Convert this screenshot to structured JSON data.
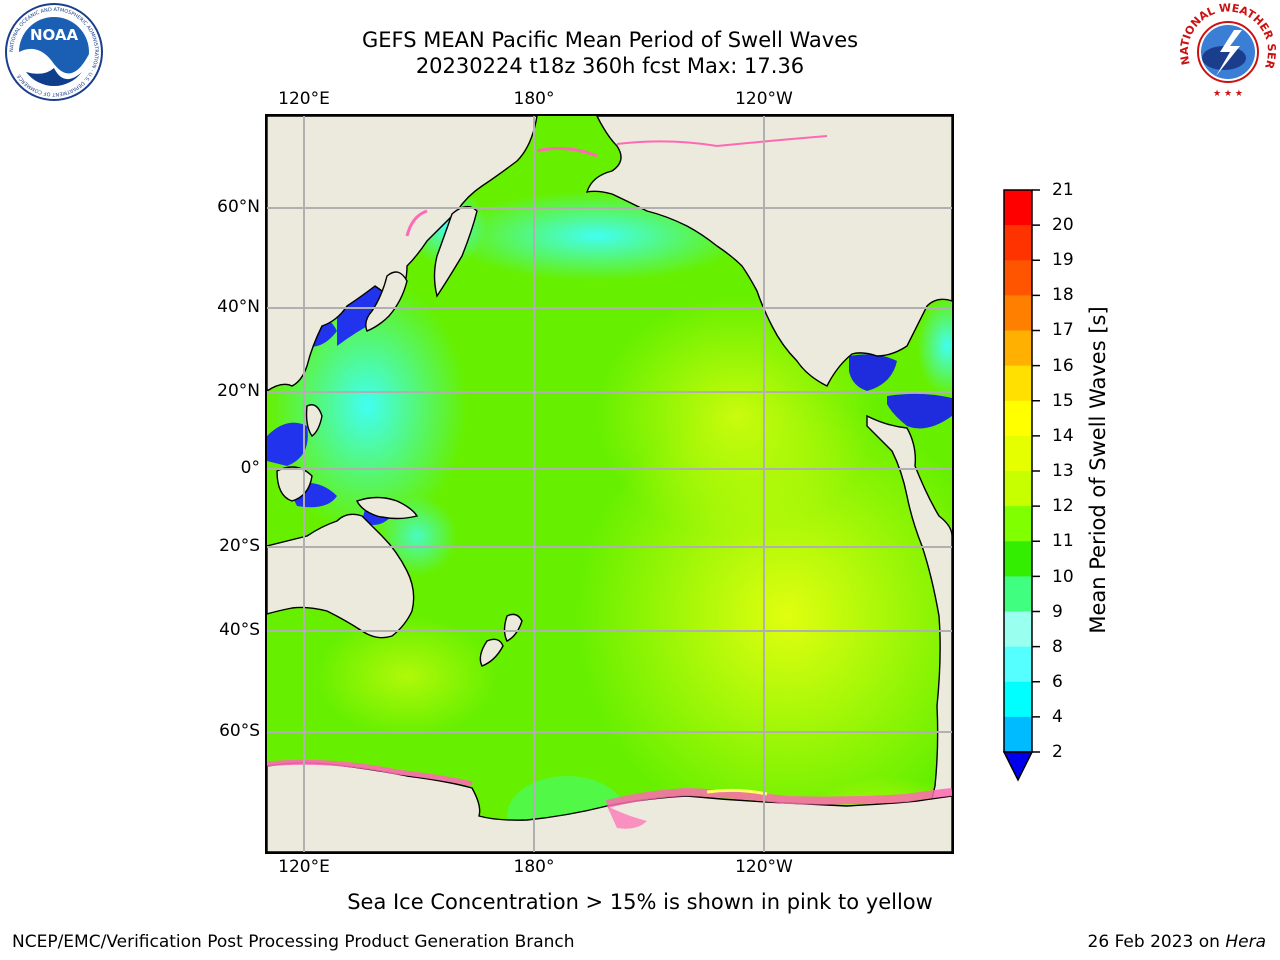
{
  "title": {
    "line1": "GEFS MEAN Pacific Mean Period of Swell Waves",
    "line2": "20230224 t18z 360h fcst   Max: 17.36"
  },
  "map": {
    "lon_labels_top": [
      "120°E",
      "180°",
      "120°W"
    ],
    "lon_labels_bottom": [
      "120°E",
      "180°",
      "120°W"
    ],
    "lat_labels": [
      "60°N",
      "40°N",
      "20°N",
      "0°",
      "20°S",
      "40°S",
      "60°S"
    ],
    "land_color": "#eceadc",
    "ice_colors": [
      "#ff69b4",
      "#ffff66"
    ]
  },
  "colorbar": {
    "label": "Mean Period of Swell Waves [s]",
    "ticks": [
      "21",
      "20",
      "19",
      "18",
      "17",
      "16",
      "15",
      "14",
      "13",
      "12",
      "11",
      "10",
      "9",
      "8",
      "6",
      "4",
      "2"
    ],
    "colors": [
      "#ff0000",
      "#ff3300",
      "#ff5500",
      "#ff8000",
      "#ffb000",
      "#ffe000",
      "#ffff00",
      "#e6ff00",
      "#c8ff00",
      "#80ff00",
      "#33ee00",
      "#40ff80",
      "#99ffee",
      "#55ffff",
      "#00ffff",
      "#00bbff",
      "#0077ff"
    ],
    "extend_color": "#0000ee"
  },
  "footnote": "Sea Ice Concentration > 15% is shown in pink to yellow",
  "footer": {
    "left": "NCEP/EMC/Verification Post Processing Product Generation Branch",
    "right_prefix": "26 Feb 2023 on ",
    "right_host": "Hera"
  },
  "logos": {
    "noaa_text": "NOAA",
    "noaa_ring": "NATIONAL OCEANIC AND ATMOSPHERIC ADMINISTRATION · U.S. DEPARTMENT OF COMMERCE",
    "nws_ring": "NATIONAL WEATHER SERVICE"
  }
}
